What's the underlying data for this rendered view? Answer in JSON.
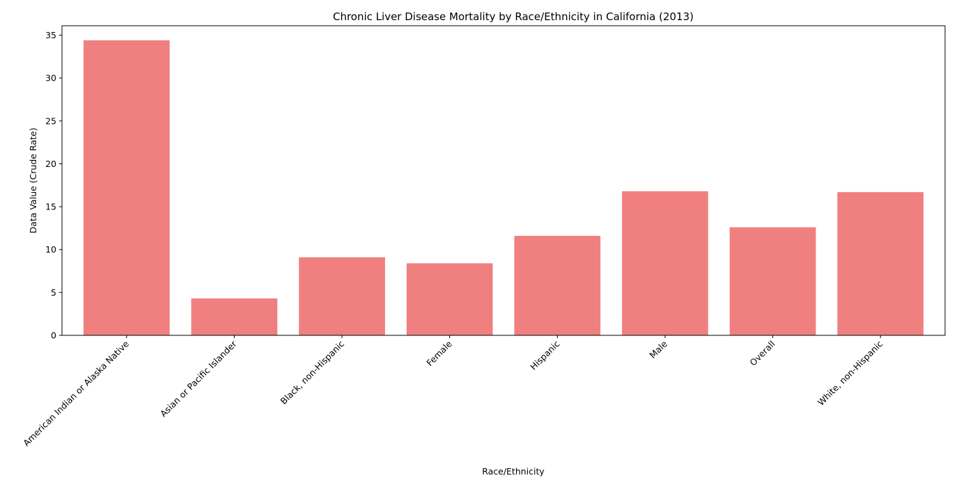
{
  "chart_data": {
    "type": "bar",
    "title": "Chronic Liver Disease Mortality by Race/Ethnicity in California (2013)",
    "xlabel": "Race/Ethnicity",
    "ylabel": "Data Value (Crude Rate)",
    "categories": [
      "American Indian or Alaska Native",
      "Asian or Pacific Islander",
      "Black, non-Hispanic",
      "Female",
      "Hispanic",
      "Male",
      "Overall",
      "White, non-Hispanic"
    ],
    "values": [
      34.4,
      4.3,
      9.1,
      8.4,
      11.6,
      16.8,
      12.6,
      16.7
    ],
    "ylim": [
      0,
      36.1
    ],
    "yticks": [
      0,
      5,
      10,
      15,
      20,
      25,
      30,
      35
    ],
    "bar_color": "#f08080",
    "grid": false,
    "legend": "none"
  }
}
